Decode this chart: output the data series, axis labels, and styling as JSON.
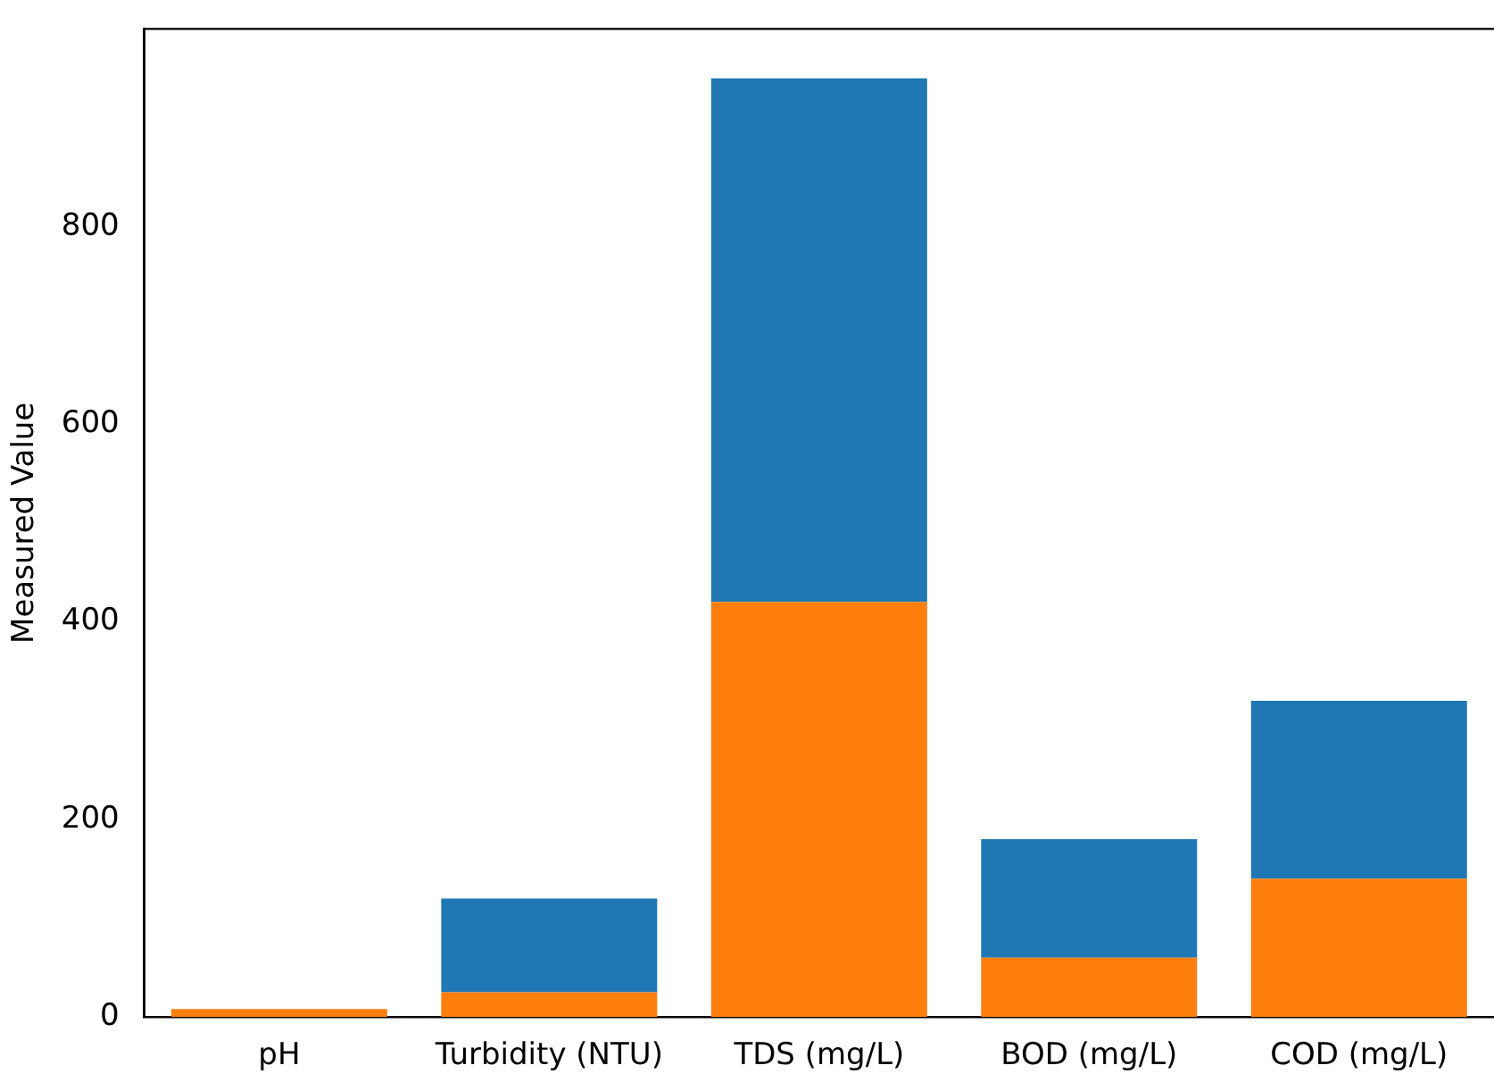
{
  "chart_data": {
    "type": "bar",
    "ylabel": "Measured Value",
    "categories": [
      "pH",
      "Turbidity (NTU)",
      "TDS (mg/L)",
      "BOD (mg/L)",
      "COD (mg/L)"
    ],
    "series": [
      {
        "color": "#ff7f0e",
        "values": [
          8,
          25,
          420,
          60,
          140
        ]
      },
      {
        "color": "#1f77b4",
        "values": [
          null,
          95,
          530,
          120,
          180
        ]
      }
    ],
    "stacked": true,
    "ylim": [
      0,
      1000
    ],
    "yticks": [
      0,
      200,
      400,
      600,
      800
    ],
    "grid": false,
    "legend": false
  }
}
